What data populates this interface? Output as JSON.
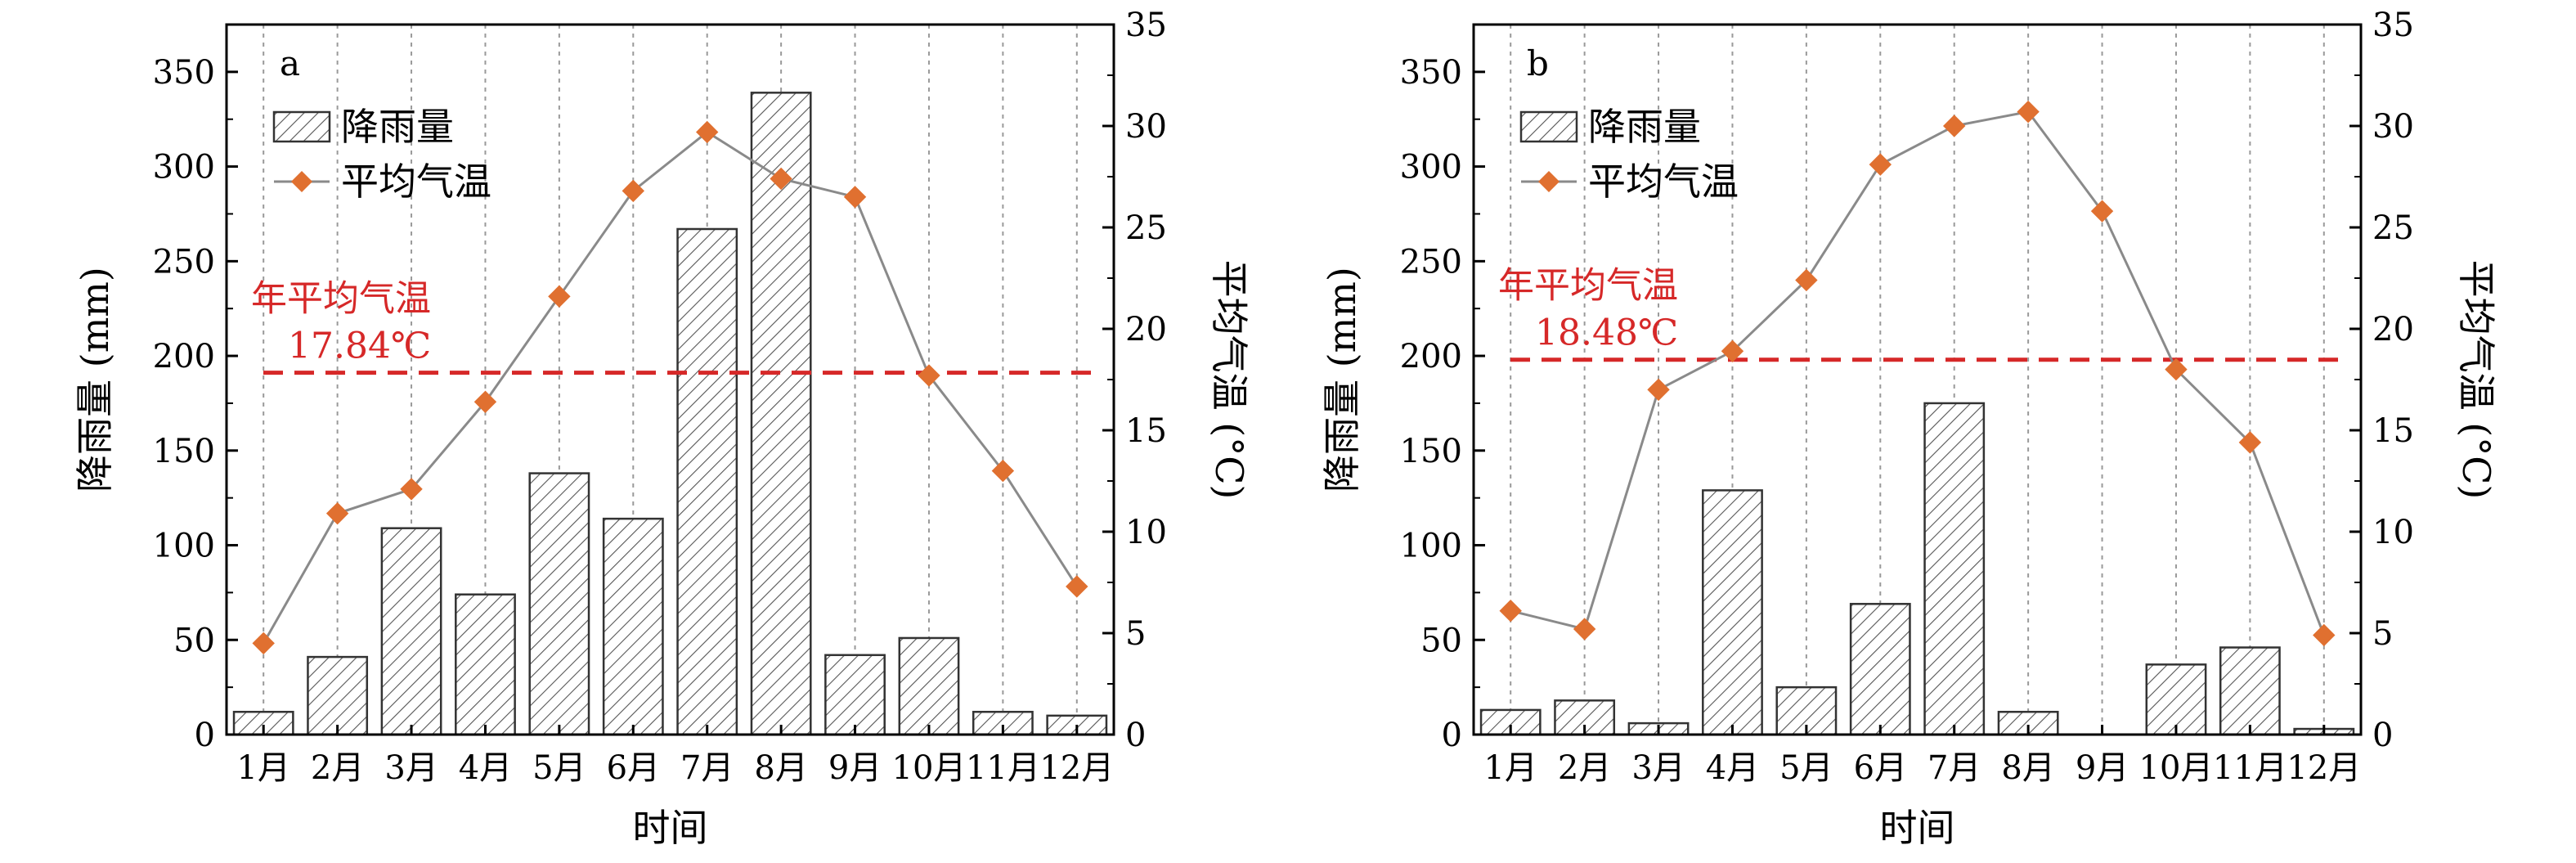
{
  "months": [
    "1月",
    "2月",
    "3月",
    "4月",
    "5月",
    "6月",
    "7月",
    "8月",
    "9月",
    "10月",
    "11月",
    "12月"
  ],
  "chart_data": [
    {
      "type": "bar",
      "panel": "a",
      "xlabel": "时间",
      "ylabel_left": "降雨量 (mm)",
      "ylabel_right": "平均气温 (°C)",
      "ylim_left": [
        0,
        375
      ],
      "ylim_right": [
        0,
        35
      ],
      "left_ticks": [
        0,
        50,
        100,
        150,
        200,
        250,
        300,
        350
      ],
      "right_ticks": [
        0,
        5,
        10,
        15,
        20,
        25,
        30,
        35
      ],
      "grid": "vertical dashed",
      "legend": "top-left",
      "categories": [
        "1月",
        "2月",
        "3月",
        "4月",
        "5月",
        "6月",
        "7月",
        "8月",
        "9月",
        "10月",
        "11月",
        "12月"
      ],
      "series": [
        {
          "name": "降雨量",
          "type": "bar",
          "axis": "left",
          "values": [
            12,
            41,
            109,
            74,
            138,
            114,
            267,
            339,
            42,
            51,
            12,
            10
          ]
        },
        {
          "name": "平均气温",
          "type": "line",
          "axis": "right",
          "values": [
            4.5,
            10.9,
            12.1,
            16.4,
            21.6,
            26.8,
            29.7,
            27.4,
            26.5,
            17.7,
            13.0,
            7.3
          ]
        }
      ],
      "annotation": {
        "label": "年平均气温",
        "value_text": "17.84℃",
        "value": 17.84
      }
    },
    {
      "type": "bar",
      "panel": "b",
      "xlabel": "时间",
      "ylabel_left": "降雨量 (mm)",
      "ylabel_right": "平均气温 (°C)",
      "ylim_left": [
        0,
        375
      ],
      "ylim_right": [
        0,
        35
      ],
      "left_ticks": [
        0,
        50,
        100,
        150,
        200,
        250,
        300,
        350
      ],
      "right_ticks": [
        0,
        5,
        10,
        15,
        20,
        25,
        30,
        35
      ],
      "grid": "vertical dashed",
      "legend": "top-left",
      "categories": [
        "1月",
        "2月",
        "3月",
        "4月",
        "5月",
        "6月",
        "7月",
        "8月",
        "9月",
        "10月",
        "11月",
        "12月"
      ],
      "series": [
        {
          "name": "降雨量",
          "type": "bar",
          "axis": "left",
          "values": [
            13,
            18,
            6,
            129,
            25,
            69,
            175,
            12,
            0,
            37,
            46,
            3
          ]
        },
        {
          "name": "平均气温",
          "type": "line",
          "axis": "right",
          "values": [
            6.1,
            5.2,
            17.0,
            18.9,
            22.4,
            28.1,
            30.0,
            30.7,
            25.8,
            18.0,
            14.4,
            4.9
          ]
        }
      ],
      "annotation": {
        "label": "年平均气温",
        "value_text": "18.48℃",
        "value": 18.48
      }
    }
  ],
  "colors": {
    "bar_fill": "#ffffff",
    "bar_hatch": "#555555",
    "bar_edge": "#333333",
    "line": "#8a8a8a",
    "marker": "#e07030",
    "mean_line": "#d62828",
    "grid": "#9a9a9a"
  }
}
